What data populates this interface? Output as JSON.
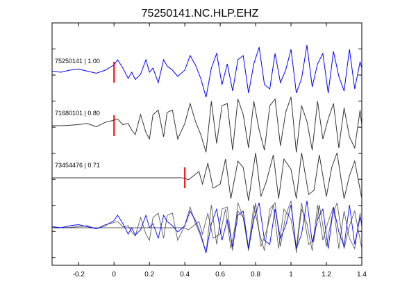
{
  "chart_data": {
    "type": "line",
    "title": "75250141.NC.HLP.EHZ",
    "xlabel": "",
    "ylabel": "",
    "xlim": [
      -0.35,
      1.4
    ],
    "xticks": [
      -0.2,
      0,
      0.2,
      0.4,
      0.6,
      0.8,
      1,
      1.2,
      1.4
    ],
    "xtick_labels": [
      "-0.2",
      "0",
      "0.2",
      "0.4",
      "0.6",
      "0.8",
      "1",
      "1.2",
      "1.4"
    ],
    "grid": false,
    "colors": {
      "primary": "#0000ff",
      "secondary": "#333333",
      "pick": "#ff0000",
      "axis": "#000000"
    },
    "series": [
      {
        "name": "75250141 | 1.00",
        "color": "#0000ff",
        "pick_time": 0.0,
        "x": [
          -0.35,
          -0.3,
          -0.25,
          -0.2,
          -0.15,
          -0.1,
          -0.05,
          0,
          0.02,
          0.05,
          0.08,
          0.1,
          0.12,
          0.15,
          0.18,
          0.2,
          0.22,
          0.25,
          0.28,
          0.3,
          0.33,
          0.36,
          0.4,
          0.43,
          0.46,
          0.49,
          0.52,
          0.55,
          0.58,
          0.61,
          0.64,
          0.67,
          0.7,
          0.73,
          0.76,
          0.79,
          0.82,
          0.85,
          0.88,
          0.91,
          0.94,
          0.97,
          1.0,
          1.03,
          1.06,
          1.09,
          1.12,
          1.15,
          1.18,
          1.21,
          1.24,
          1.27,
          1.3,
          1.33,
          1.36,
          1.39,
          1.4
        ],
        "y": [
          0.05,
          0.0,
          0.1,
          0.15,
          0.05,
          -0.05,
          0.1,
          0.35,
          0.6,
          0.2,
          -0.3,
          0.0,
          -0.35,
          -0.1,
          0.6,
          0.0,
          0.2,
          -0.5,
          0.6,
          0.3,
          0.1,
          -0.2,
          0.1,
          0.8,
          0.35,
          -0.3,
          -1.2,
          0.2,
          0.9,
          -0.6,
          0.4,
          -0.9,
          0.6,
          0.8,
          -1.0,
          0.4,
          1.2,
          -0.6,
          -0.8,
          0.9,
          -0.5,
          0.1,
          1.1,
          -1.0,
          -0.3,
          1.3,
          -0.7,
          0.4,
          0.9,
          -1.0,
          1.0,
          -0.2,
          -0.9,
          1.1,
          -0.8,
          0.5,
          0.2
        ]
      },
      {
        "name": "71680101 | 0.80",
        "color": "#333333",
        "pick_time": 0.0,
        "x": [
          -0.35,
          -0.3,
          -0.25,
          -0.2,
          -0.15,
          -0.1,
          -0.05,
          0,
          0.02,
          0.05,
          0.08,
          0.1,
          0.12,
          0.15,
          0.18,
          0.2,
          0.22,
          0.25,
          0.28,
          0.3,
          0.33,
          0.36,
          0.4,
          0.43,
          0.46,
          0.49,
          0.52,
          0.55,
          0.58,
          0.61,
          0.64,
          0.67,
          0.7,
          0.73,
          0.76,
          0.79,
          0.82,
          0.85,
          0.88,
          0.91,
          0.94,
          0.97,
          1.0,
          1.03,
          1.06,
          1.09,
          1.12,
          1.15,
          1.18,
          1.21,
          1.24,
          1.27,
          1.3,
          1.33,
          1.36,
          1.39,
          1.4
        ],
        "y": [
          0.0,
          0.0,
          0.02,
          0.05,
          0.1,
          -0.05,
          0.15,
          0.25,
          0.3,
          0.05,
          0.1,
          -0.2,
          -0.4,
          0.5,
          -0.3,
          -0.6,
          0.5,
          0.7,
          -0.5,
          0.6,
          0.7,
          -0.6,
          0.1,
          1.0,
          0.2,
          -0.4,
          -1.2,
          1.1,
          -0.8,
          0.9,
          1.0,
          -1.1,
          1.2,
          0.5,
          -1.0,
          1.1,
          -0.2,
          -1.1,
          0.9,
          1.2,
          -0.9,
          0.6,
          1.3,
          -1.2,
          0.9,
          0.2,
          -1.1,
          1.1,
          -0.6,
          0.3,
          1.0,
          -1.0,
          0.8,
          -0.5,
          -1.0,
          0.7,
          0.0
        ]
      },
      {
        "name": "73454476 | 0.71",
        "color": "#333333",
        "pick_time": 0.4,
        "x": [
          -0.35,
          -0.2,
          0,
          0.2,
          0.3,
          0.38,
          0.4,
          0.42,
          0.45,
          0.48,
          0.5,
          0.53,
          0.56,
          0.6,
          0.63,
          0.66,
          0.7,
          0.73,
          0.76,
          0.8,
          0.83,
          0.86,
          0.9,
          0.93,
          0.96,
          1.0,
          1.03,
          1.06,
          1.1,
          1.13,
          1.16,
          1.2,
          1.23,
          1.26,
          1.3,
          1.33,
          1.36,
          1.4
        ],
        "y": [
          0.0,
          0.0,
          0.0,
          0.0,
          0.0,
          0.0,
          -0.02,
          -0.1,
          0.1,
          0.3,
          -0.3,
          0.7,
          -0.5,
          -0.3,
          0.9,
          -1.0,
          0.8,
          0.5,
          -1.1,
          1.2,
          -0.9,
          -0.2,
          1.1,
          -1.0,
          0.9,
          0.4,
          -1.0,
          1.2,
          -0.8,
          -0.6,
          1.1,
          -0.9,
          0.5,
          1.2,
          -1.0,
          0.1,
          0.8,
          -1.0
        ]
      }
    ]
  },
  "annotations": {
    "trace_labels": [
      "75250141 | 1.00",
      "71680101 | 0.80",
      "73454476 | 0.71"
    ]
  }
}
